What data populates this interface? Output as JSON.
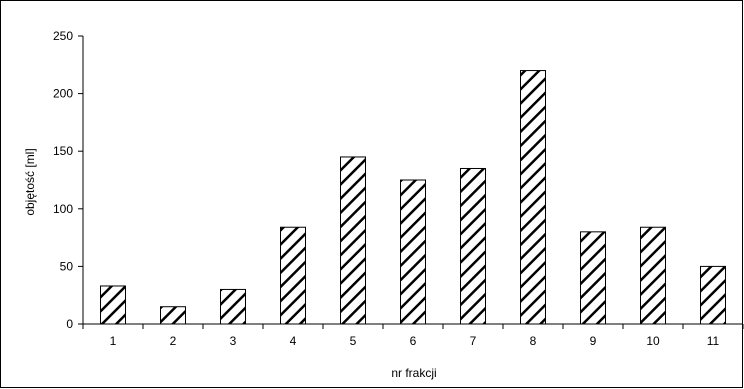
{
  "chart_data": {
    "type": "bar",
    "categories": [
      "1",
      "2",
      "3",
      "4",
      "5",
      "6",
      "7",
      "8",
      "9",
      "10",
      "11"
    ],
    "values": [
      33,
      15,
      30,
      84,
      145,
      125,
      135,
      220,
      80,
      84,
      50
    ],
    "title": "",
    "xlabel": "nr frakcji",
    "ylabel": "objętość [ml]",
    "ylim": [
      0,
      250
    ],
    "yticks": [
      0,
      50,
      100,
      150,
      200,
      250
    ],
    "grid": false,
    "legend": "none",
    "bar_pattern": "diagonal-hatch",
    "bar_color": "#000000",
    "background": "#ffffff"
  }
}
